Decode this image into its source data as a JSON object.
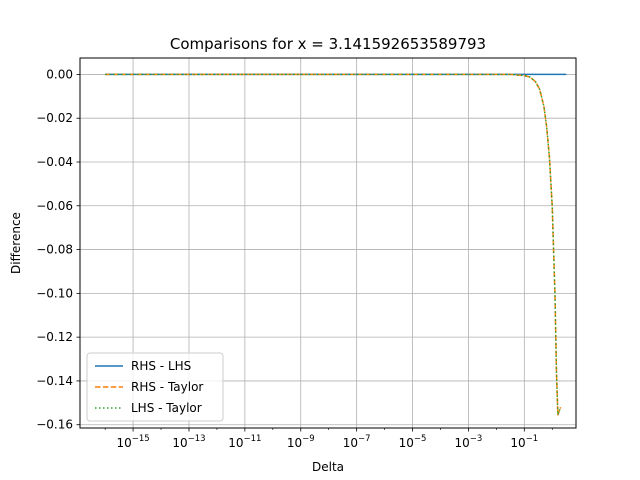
{
  "chart_data": {
    "type": "line",
    "title": "Comparisons for x = 3.141592653589793",
    "xlabel": "Delta",
    "ylabel": "Difference",
    "x_scale": "log",
    "xlim_exp": [
      -16.9,
      0.85
    ],
    "ylim": [
      -0.1615,
      0.0075
    ],
    "x_ticks": [
      {
        "exp": -15,
        "base": "10",
        "sup": "−15"
      },
      {
        "exp": -13,
        "base": "10",
        "sup": "−13"
      },
      {
        "exp": -11,
        "base": "10",
        "sup": "−11"
      },
      {
        "exp": -9,
        "base": "10",
        "sup": "−9"
      },
      {
        "exp": -7,
        "base": "10",
        "sup": "−7"
      },
      {
        "exp": -5,
        "base": "10",
        "sup": "−5"
      },
      {
        "exp": -3,
        "base": "10",
        "sup": "−3"
      },
      {
        "exp": -1,
        "base": "10",
        "sup": "−1"
      }
    ],
    "y_ticks": [
      {
        "value": 0.0,
        "label": "0.00"
      },
      {
        "value": -0.02,
        "label": "−0.02"
      },
      {
        "value": -0.04,
        "label": "−0.04"
      },
      {
        "value": -0.06,
        "label": "−0.06"
      },
      {
        "value": -0.08,
        "label": "−0.08"
      },
      {
        "value": -0.1,
        "label": "−0.10"
      },
      {
        "value": -0.12,
        "label": "−0.12"
      },
      {
        "value": -0.14,
        "label": "−0.14"
      },
      {
        "value": -0.16,
        "label": "−0.16"
      }
    ],
    "grid": true,
    "legend_position": "lower-left",
    "series": [
      {
        "name": "RHS - LHS",
        "color": "#1f77b4",
        "style": "solid",
        "points": [
          [
            -16,
            0.0
          ],
          [
            0.5,
            0.0
          ]
        ]
      },
      {
        "name": "RHS - Taylor",
        "color": "#ff7f0e",
        "style": "dashed",
        "points": [
          [
            -16,
            0.0
          ],
          [
            -1.5,
            0.0
          ],
          [
            -1.0,
            -0.0005
          ],
          [
            -0.8,
            -0.0012
          ],
          [
            -0.6,
            -0.0033
          ],
          [
            -0.45,
            -0.0068
          ],
          [
            -0.3,
            -0.0145
          ],
          [
            -0.2,
            -0.024
          ],
          [
            -0.1,
            -0.038
          ],
          [
            0.0,
            -0.0605
          ],
          [
            0.1,
            -0.1015
          ],
          [
            0.15,
            -0.1355
          ],
          [
            0.2,
            -0.1555
          ],
          [
            0.3,
            -0.152
          ]
        ]
      },
      {
        "name": "LHS - Taylor",
        "color": "#2ca02c",
        "style": "dotted",
        "points": [
          [
            -16,
            0.0
          ],
          [
            -1.5,
            0.0
          ],
          [
            -1.0,
            -0.0005
          ],
          [
            -0.8,
            -0.0012
          ],
          [
            -0.6,
            -0.0033
          ],
          [
            -0.45,
            -0.0068
          ],
          [
            -0.3,
            -0.0145
          ],
          [
            -0.2,
            -0.024
          ],
          [
            -0.1,
            -0.038
          ],
          [
            0.0,
            -0.0605
          ],
          [
            0.1,
            -0.1015
          ],
          [
            0.15,
            -0.1355
          ],
          [
            0.2,
            -0.1555
          ],
          [
            0.3,
            -0.152
          ]
        ]
      }
    ]
  }
}
